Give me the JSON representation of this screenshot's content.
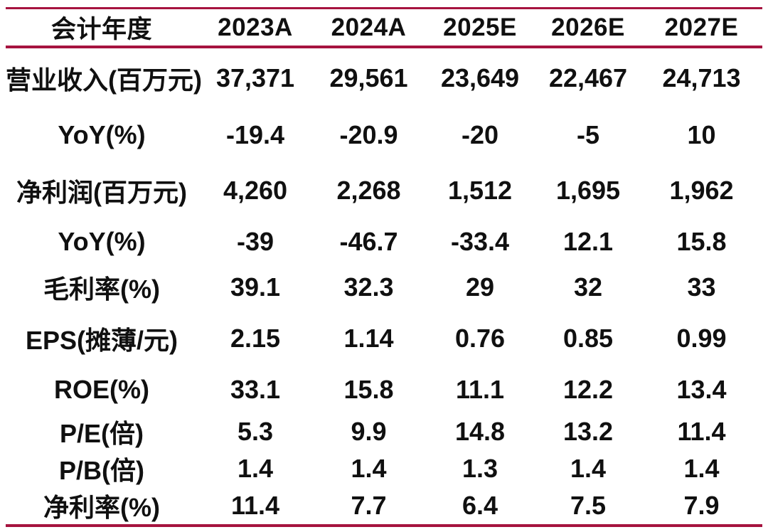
{
  "colors": {
    "rule": "#A6133F",
    "text": "#101010",
    "background": "#FFFFFF"
  },
  "chart_data": {
    "type": "table",
    "title": "",
    "header": [
      "会计年度",
      "2023A",
      "2024A",
      "2025E",
      "2026E",
      "2027E"
    ],
    "rows": [
      {
        "label": "营业收入(百万元)",
        "values": [
          "37,371",
          "29,561",
          "23,649",
          "22,467",
          "24,713"
        ]
      },
      {
        "label": "YoY(%)",
        "values": [
          "-19.4",
          "-20.9",
          "-20",
          "-5",
          "10"
        ]
      },
      {
        "label": "净利润(百万元)",
        "values": [
          "4,260",
          "2,268",
          "1,512",
          "1,695",
          "1,962"
        ]
      },
      {
        "label": "YoY(%)",
        "values": [
          "-39",
          "-46.7",
          "-33.4",
          "12.1",
          "15.8"
        ]
      },
      {
        "label": "毛利率(%)",
        "values": [
          "39.1",
          "32.3",
          "29",
          "32",
          "33"
        ]
      },
      {
        "label": "EPS(摊薄/元)",
        "values": [
          "2.15",
          "1.14",
          "0.76",
          "0.85",
          "0.99"
        ]
      },
      {
        "label": "ROE(%)",
        "values": [
          "33.1",
          "15.8",
          "11.1",
          "12.2",
          "13.4"
        ]
      },
      {
        "label": "P/E(倍)",
        "values": [
          "5.3",
          "9.9",
          "14.8",
          "13.2",
          "11.4"
        ]
      },
      {
        "label": "P/B(倍)",
        "values": [
          "1.4",
          "1.4",
          "1.3",
          "1.4",
          "1.4"
        ]
      },
      {
        "label": "净利率(%)",
        "values": [
          "11.4",
          "7.7",
          "6.4",
          "7.5",
          "7.9"
        ]
      }
    ]
  }
}
